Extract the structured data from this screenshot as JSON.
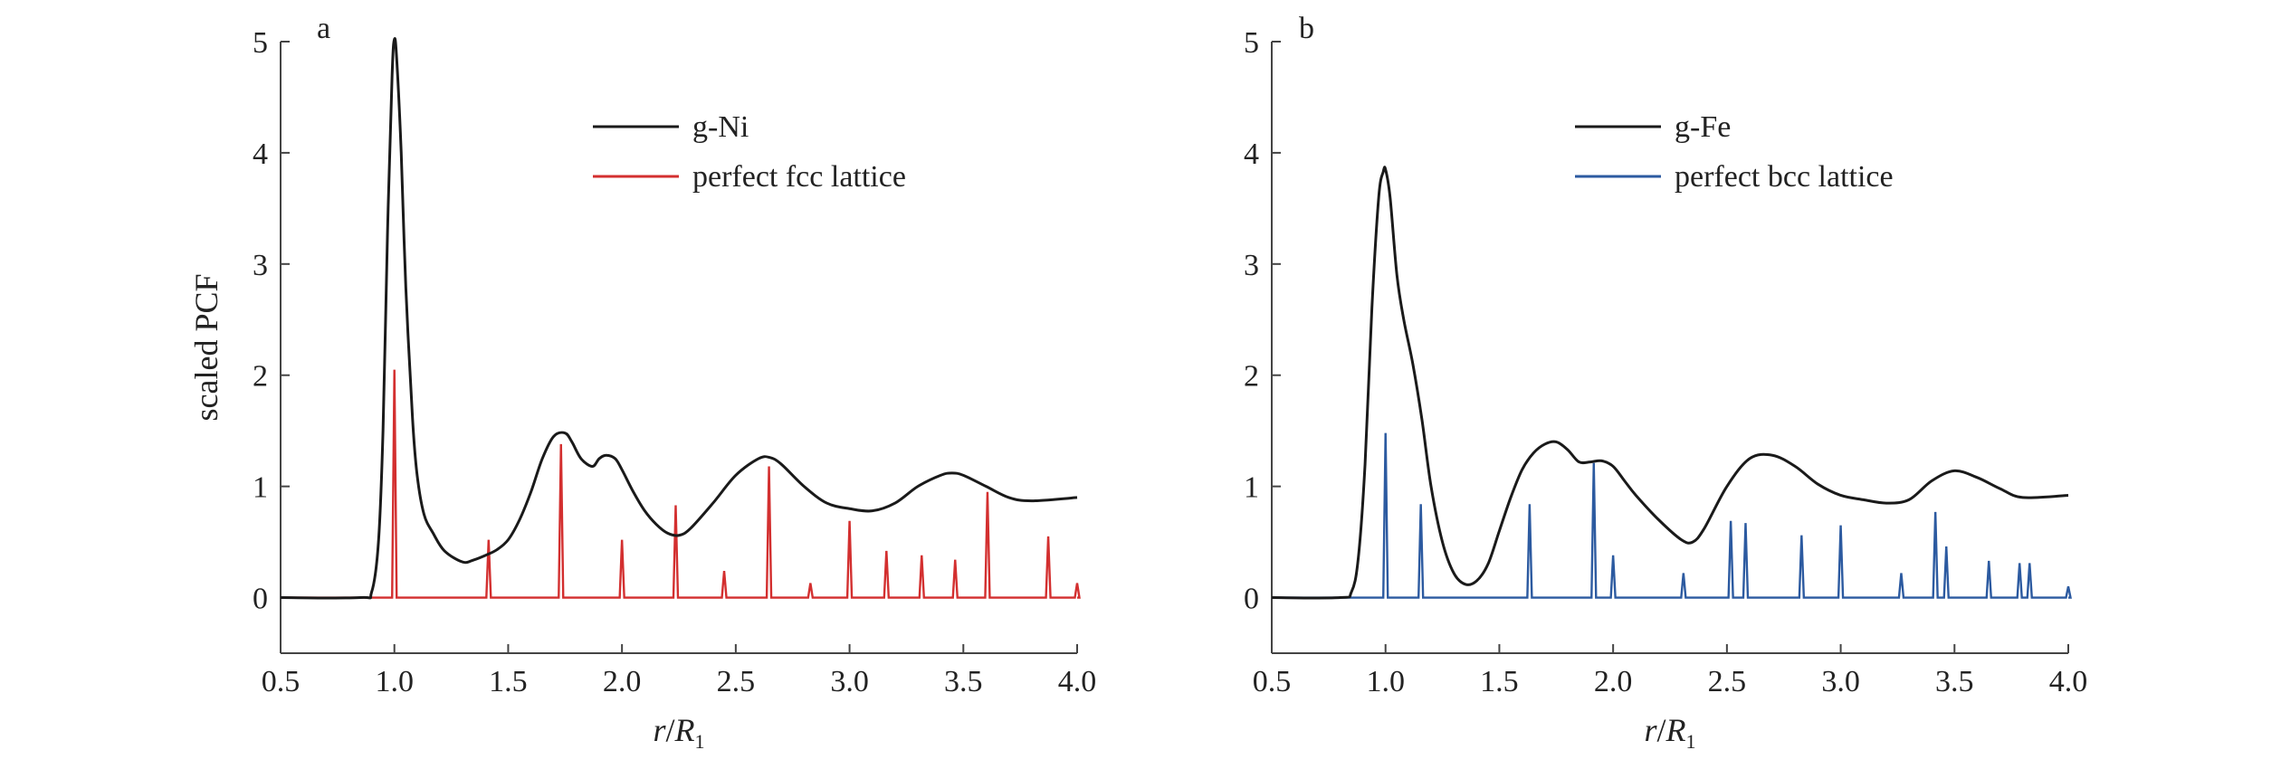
{
  "chart_data": [
    {
      "type": "line",
      "panel_label": "a",
      "ylabel": "scaled PCF",
      "xlabel_italic": "r",
      "xlabel_sep": "/",
      "xlabel_var": "R",
      "xlabel_sub": "1",
      "xlim": [
        0.5,
        4.0
      ],
      "ylim": [
        -0.5,
        5.0
      ],
      "xticks": [
        "0.5",
        "1.0",
        "1.5",
        "2.0",
        "2.5",
        "3.0",
        "3.5",
        "4.0"
      ],
      "yticks": [
        "0",
        "1",
        "2",
        "3",
        "4",
        "5"
      ],
      "legend_position": "top-right",
      "series": [
        {
          "name": "g-Ni",
          "color": "#1a1a1a",
          "x": [
            0.5,
            0.85,
            0.9,
            0.93,
            0.95,
            0.97,
            0.99,
            1.0,
            1.01,
            1.03,
            1.05,
            1.08,
            1.1,
            1.13,
            1.17,
            1.22,
            1.3,
            1.35,
            1.4,
            1.45,
            1.5,
            1.55,
            1.6,
            1.65,
            1.7,
            1.75,
            1.78,
            1.82,
            1.87,
            1.9,
            1.93,
            1.97,
            2.0,
            2.05,
            2.1,
            2.15,
            2.2,
            2.25,
            2.3,
            2.4,
            2.5,
            2.6,
            2.65,
            2.7,
            2.8,
            2.9,
            3.0,
            3.1,
            3.2,
            3.3,
            3.4,
            3.45,
            3.5,
            3.6,
            3.7,
            3.8,
            4.0
          ],
          "y": [
            0,
            0,
            0.05,
            0.5,
            1.5,
            3.3,
            4.7,
            5.02,
            4.85,
            4.0,
            2.8,
            1.6,
            1.1,
            0.75,
            0.58,
            0.42,
            0.32,
            0.34,
            0.38,
            0.43,
            0.52,
            0.7,
            0.95,
            1.25,
            1.45,
            1.48,
            1.4,
            1.25,
            1.18,
            1.25,
            1.28,
            1.25,
            1.15,
            0.95,
            0.78,
            0.66,
            0.58,
            0.56,
            0.62,
            0.85,
            1.1,
            1.25,
            1.26,
            1.2,
            1.0,
            0.85,
            0.8,
            0.78,
            0.85,
            1.0,
            1.1,
            1.12,
            1.1,
            1.0,
            0.9,
            0.87,
            0.9
          ]
        },
        {
          "name": "perfect fcc lattice",
          "color": "#d32f2f",
          "peak_x": [
            1.0,
            1.414,
            1.732,
            2.0,
            2.236,
            2.449,
            2.646,
            2.828,
            3.0,
            3.162,
            3.317,
            3.464,
            3.606,
            3.873,
            4.0
          ],
          "peak_y": [
            2.05,
            0.52,
            1.38,
            0.52,
            0.83,
            0.24,
            1.18,
            0.13,
            0.69,
            0.42,
            0.38,
            0.34,
            0.95,
            0.55,
            0.13
          ]
        }
      ]
    },
    {
      "type": "line",
      "panel_label": "b",
      "ylabel": "",
      "xlabel_italic": "r",
      "xlabel_sep": "/",
      "xlabel_var": "R",
      "xlabel_sub": "1",
      "xlim": [
        0.5,
        4.0
      ],
      "ylim": [
        -0.5,
        5.0
      ],
      "xticks": [
        "0.5",
        "1.0",
        "1.5",
        "2.0",
        "2.5",
        "3.0",
        "3.5",
        "4.0"
      ],
      "yticks": [
        "0",
        "1",
        "2",
        "3",
        "4",
        "5"
      ],
      "legend_position": "top-right",
      "series": [
        {
          "name": "g-Fe",
          "color": "#1a1a1a",
          "x": [
            0.5,
            0.8,
            0.85,
            0.88,
            0.91,
            0.94,
            0.97,
            0.99,
            1.0,
            1.02,
            1.05,
            1.08,
            1.12,
            1.16,
            1.2,
            1.25,
            1.3,
            1.35,
            1.4,
            1.45,
            1.5,
            1.55,
            1.6,
            1.65,
            1.7,
            1.75,
            1.8,
            1.85,
            1.9,
            1.95,
            2.0,
            2.05,
            2.1,
            2.2,
            2.3,
            2.35,
            2.4,
            2.5,
            2.6,
            2.7,
            2.8,
            2.9,
            3.0,
            3.1,
            3.2,
            3.3,
            3.4,
            3.5,
            3.6,
            3.7,
            3.8,
            4.0
          ],
          "y": [
            0,
            0,
            0.05,
            0.35,
            1.2,
            2.6,
            3.6,
            3.83,
            3.85,
            3.6,
            2.9,
            2.5,
            2.1,
            1.6,
            1.0,
            0.5,
            0.22,
            0.12,
            0.15,
            0.3,
            0.6,
            0.9,
            1.15,
            1.3,
            1.38,
            1.4,
            1.33,
            1.22,
            1.22,
            1.23,
            1.18,
            1.05,
            0.92,
            0.7,
            0.52,
            0.5,
            0.62,
            1.0,
            1.25,
            1.28,
            1.18,
            1.02,
            0.92,
            0.88,
            0.85,
            0.88,
            1.05,
            1.14,
            1.08,
            0.98,
            0.9,
            0.92
          ]
        },
        {
          "name": "perfect bcc lattice",
          "color": "#2c5aa0",
          "peak_x": [
            1.0,
            1.155,
            1.633,
            1.915,
            2.0,
            2.309,
            2.517,
            2.582,
            2.828,
            3.0,
            3.266,
            3.416,
            3.464,
            3.651,
            3.786,
            3.83,
            4.0
          ],
          "peak_y": [
            1.48,
            0.84,
            0.84,
            1.21,
            0.38,
            0.22,
            0.69,
            0.67,
            0.56,
            0.65,
            0.22,
            0.77,
            0.46,
            0.33,
            0.31,
            0.31,
            0.1
          ]
        }
      ]
    }
  ]
}
